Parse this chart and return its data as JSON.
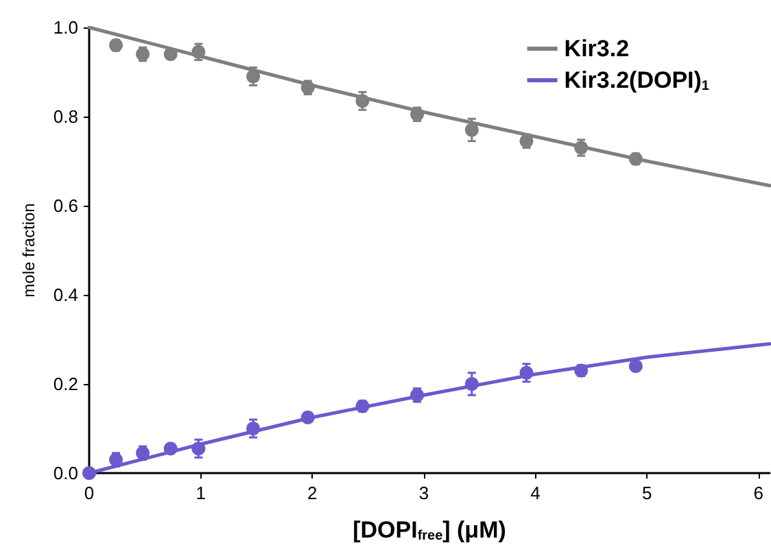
{
  "chart_data": {
    "type": "scatter",
    "xlabel": "[DOPI$_{free}$] (μM)",
    "ylabel": "mole fraction",
    "xlim": [
      0,
      6.1
    ],
    "xticks": [
      0,
      1,
      2,
      3,
      4,
      5,
      6
    ],
    "ylim": [
      0,
      1.0
    ],
    "yticks": [
      {
        "value": 0,
        "label": "0.0"
      },
      {
        "value": 0.2,
        "label": "0.2"
      },
      {
        "value": 0.4,
        "label": "0.4"
      },
      {
        "value": 0.6,
        "label": "0.6"
      },
      {
        "value": 0.8,
        "label": "0.8"
      },
      {
        "value": 1.0,
        "label": "1.0"
      }
    ],
    "grid": false,
    "legend": "top right",
    "series": [
      {
        "name": "Kir3.2",
        "type": "line",
        "color": "#7f7f7f",
        "marker": "none",
        "x": [
          0,
          1,
          2,
          3,
          4,
          5,
          6.1
        ],
        "values": [
          1.0,
          0.935,
          0.87,
          0.81,
          0.755,
          0.7,
          0.645
        ]
      },
      {
        "name": "Kir3.2(DOPI)$_{1}$",
        "type": "line",
        "color": "#6a5acd",
        "marker": "none",
        "x": [
          0,
          1,
          2,
          3,
          4,
          5,
          6.1
        ],
        "values": [
          0,
          0.065,
          0.125,
          0.175,
          0.222,
          0.26,
          0.29
        ]
      },
      {
        "color": "#7f7f7f",
        "marker": "circle",
        "x": [
          0.24,
          0.48,
          0.73,
          0.98,
          1.47,
          1.96,
          2.45,
          2.94,
          3.43,
          3.92,
          4.41,
          4.9
        ],
        "values": [
          0.96,
          0.94,
          0.94,
          0.945,
          0.89,
          0.865,
          0.835,
          0.805,
          0.77,
          0.745,
          0.73,
          0.705
        ],
        "errors": [
          0.012,
          0.015,
          0.008,
          0.018,
          0.02,
          0.015,
          0.02,
          0.015,
          0.025,
          0.015,
          0.018,
          0.012
        ]
      },
      {
        "color": "#6a5acd",
        "marker": "circle",
        "x": [
          0,
          0.24,
          0.48,
          0.73,
          0.98,
          1.47,
          1.96,
          2.45,
          2.94,
          3.43,
          3.92,
          4.41,
          4.9
        ],
        "values": [
          0,
          0.03,
          0.045,
          0.055,
          0.055,
          0.1,
          0.125,
          0.15,
          0.175,
          0.2,
          0.225,
          0.23,
          0.24
        ],
        "errors": [
          null,
          0.015,
          0.015,
          0.008,
          0.02,
          0.02,
          0.01,
          0.012,
          0.015,
          0.025,
          0.02,
          0.012,
          0.008
        ]
      }
    ]
  }
}
